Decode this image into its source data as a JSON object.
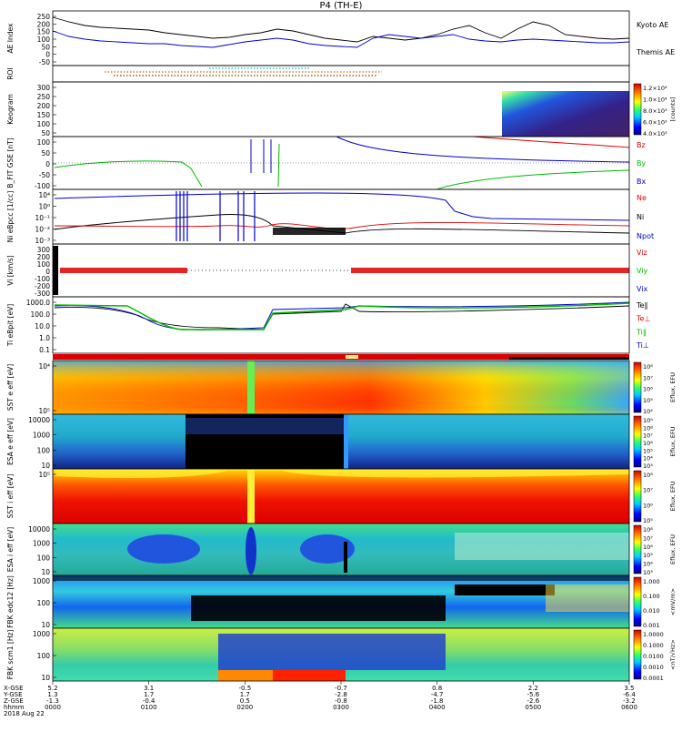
{
  "title": "P4 (TH-E)",
  "colors": {
    "kyoto": "#000000",
    "themis": "#0000cc",
    "red": "#dd0000",
    "green": "#00bb00",
    "blue": "#0000cc",
    "black": "#000000"
  },
  "chart_data": [
    {
      "type": "line",
      "panel": "ae",
      "ylabel": "AE Index",
      "yticks": [
        "250",
        "200",
        "150",
        "100",
        "50",
        "0",
        "-50"
      ],
      "x": [
        0,
        10,
        20,
        30,
        40,
        50,
        60,
        70,
        80,
        90,
        100,
        110,
        120,
        130,
        140,
        150,
        160,
        170,
        180,
        190,
        200,
        210,
        220,
        230,
        240,
        250,
        260,
        270,
        280,
        290,
        300,
        310,
        320,
        330,
        340,
        350,
        360
      ],
      "series": [
        {
          "name": "Kyoto AE",
          "color": "#000000",
          "values": [
            215,
            190,
            170,
            160,
            155,
            150,
            145,
            130,
            120,
            110,
            100,
            105,
            120,
            130,
            150,
            140,
            120,
            100,
            90,
            80,
            110,
            100,
            90,
            100,
            120,
            150,
            170,
            130,
            100,
            150,
            190,
            170,
            120,
            110,
            100,
            95,
            100
          ]
        },
        {
          "name": "Themis AE",
          "color": "#0000cc",
          "values": [
            140,
            110,
            95,
            85,
            80,
            75,
            70,
            70,
            60,
            55,
            50,
            65,
            80,
            90,
            100,
            90,
            70,
            60,
            55,
            50,
            100,
            120,
            110,
            100,
            110,
            120,
            95,
            85,
            80,
            90,
            95,
            90,
            85,
            80,
            75,
            75,
            80
          ]
        }
      ],
      "ylim": [
        -50,
        250
      ]
    },
    {
      "type": "heatmap",
      "panel": "roi",
      "ylabel": "ROI"
    },
    {
      "type": "heatmap",
      "panel": "keogram",
      "ylabel": "Keogram",
      "yticks": [
        "300",
        "250",
        "200",
        "150",
        "100",
        "50"
      ],
      "colorbar_ticks": [
        "1.2×10⁴",
        "1.0×10⁴",
        "8.0×10³",
        "6.0×10³",
        "4.0×10³"
      ],
      "colorbar_label": "[counts]"
    },
    {
      "type": "line",
      "panel": "bfit",
      "ylabel": "B_FIT GSE [nT]",
      "yticks": [
        "100",
        "50",
        "0",
        "-50",
        "-100"
      ],
      "series": [
        {
          "name": "Bz",
          "color": "#dd0000"
        },
        {
          "name": "By",
          "color": "#00bb00"
        },
        {
          "name": "Bx",
          "color": "#0000cc"
        }
      ],
      "ylim": [
        -100,
        100
      ]
    },
    {
      "type": "line",
      "panel": "ni",
      "ylabel": "Ni eBpcc [1/cc]",
      "yticks": [
        "10⁴",
        "10⁰",
        "10⁻¹",
        "10⁻²",
        "10⁻³"
      ],
      "series": [
        {
          "name": "Ne",
          "color": "#dd0000"
        },
        {
          "name": "Ni",
          "color": "#000000"
        },
        {
          "name": "Npot",
          "color": "#0000cc"
        }
      ]
    },
    {
      "type": "line",
      "panel": "vi",
      "ylabel": "Vi [km/s]",
      "yticks": [
        "300",
        "200",
        "100",
        "0",
        "-100",
        "-200",
        "-300"
      ],
      "series": [
        {
          "name": "Viz",
          "color": "#dd0000"
        },
        {
          "name": "Viy",
          "color": "#00bb00"
        },
        {
          "name": "Vix",
          "color": "#0000cc"
        }
      ],
      "ylim": [
        -300,
        300
      ]
    },
    {
      "type": "line",
      "panel": "ti",
      "ylabel": "Ti eBpit [eV]",
      "yticks": [
        "1000.0",
        "100.0",
        "10.0",
        "1.0",
        "0.1"
      ],
      "series": [
        {
          "name": "Te∥",
          "color": "#000000"
        },
        {
          "name": "Te⊥",
          "color": "#dd0000"
        },
        {
          "name": "Ti∥",
          "color": "#00bb00"
        },
        {
          "name": "Ti⊥",
          "color": "#0000cc"
        }
      ]
    },
    {
      "type": "heatmap",
      "panel": "sst_e",
      "ylabel": "SST e eff [eV]",
      "yticks": [
        "10⁴",
        "10⁵"
      ],
      "colorbar_ticks": [
        "10⁸",
        "10⁷",
        "10⁶",
        "10⁵",
        "10⁴"
      ],
      "colorbar_label": "Eflux, EFU"
    },
    {
      "type": "heatmap",
      "panel": "esa_e",
      "ylabel": "ESA e eff [eV]",
      "yticks": [
        "10000",
        "1000",
        "100",
        "10"
      ],
      "colorbar_ticks": [
        "10⁹",
        "10⁸",
        "10⁷",
        "10⁶",
        "10⁵",
        "10⁴",
        "10³"
      ],
      "colorbar_label": "Eflux, EFU"
    },
    {
      "type": "heatmap",
      "panel": "sst_i",
      "ylabel": "SST i eff [eV]",
      "yticks": [
        "10⁵"
      ],
      "colorbar_ticks": [
        "10⁸",
        "10⁷",
        "10⁶",
        "10⁵"
      ],
      "colorbar_label": "Eflux, EFU"
    },
    {
      "type": "heatmap",
      "panel": "esa_i",
      "ylabel": "ESA i eff [eV]",
      "yticks": [
        "10000",
        "1000",
        "100",
        "10"
      ],
      "colorbar_ticks": [
        "10⁸",
        "10⁷",
        "10⁶",
        "10⁵",
        "10⁴",
        "10³"
      ],
      "colorbar_label": "Eflux, EFU"
    },
    {
      "type": "heatmap",
      "panel": "fbk_e",
      "ylabel": "FBK edc12 [Hz]",
      "yticks": [
        "1000",
        "100",
        "10"
      ],
      "colorbar_ticks": [
        "1.000",
        "0.100",
        "0.010",
        "0.001"
      ],
      "colorbar_label": "<mV/m>"
    },
    {
      "type": "heatmap",
      "panel": "fbk_b",
      "ylabel": "FBK scm1 [Hz]",
      "yticks": [
        "1000",
        "100",
        "10"
      ],
      "colorbar_ticks": [
        "1.0000",
        "0.1000",
        "0.0100",
        "0.0010",
        "0.0001"
      ],
      "colorbar_label": "<nT/√Hz>"
    }
  ],
  "legends": {
    "ae": [
      "Kyoto AE",
      "Themis AE"
    ],
    "bfit": [
      "Bz",
      "By",
      "Bx"
    ],
    "ni": [
      "Ne",
      "Ni",
      "Npot"
    ],
    "vi": [
      "Viz",
      "Viy",
      "Vix"
    ],
    "ti": [
      "Te∥",
      "Te⊥",
      "Ti∥",
      "Ti⊥"
    ]
  },
  "xaxis": {
    "row_labels": [
      "X-GSE",
      "Y-GSE",
      "Z-GSE",
      "hhmm",
      "2018 Aug 22"
    ],
    "ticks": [
      {
        "x": "5.2",
        "y": "1.3",
        "z": "-1.3",
        "t": "0000"
      },
      {
        "x": "3.1",
        "y": "1.7",
        "z": "-0.4",
        "t": "0100"
      },
      {
        "x": "-0.5",
        "y": "1.7",
        "z": "0.5",
        "t": "0200"
      },
      {
        "x": "-0.7",
        "y": "-2.8",
        "z": "-0.8",
        "t": "0300"
      },
      {
        "x": "0.8",
        "y": "-4.7",
        "z": "-1.8",
        "t": "0400"
      },
      {
        "x": "2.2",
        "y": "-5.6",
        "z": "-2.6",
        "t": "0500"
      },
      {
        "x": "3.5",
        "y": "-6.4",
        "z": "-3.2",
        "t": "0600"
      }
    ]
  }
}
